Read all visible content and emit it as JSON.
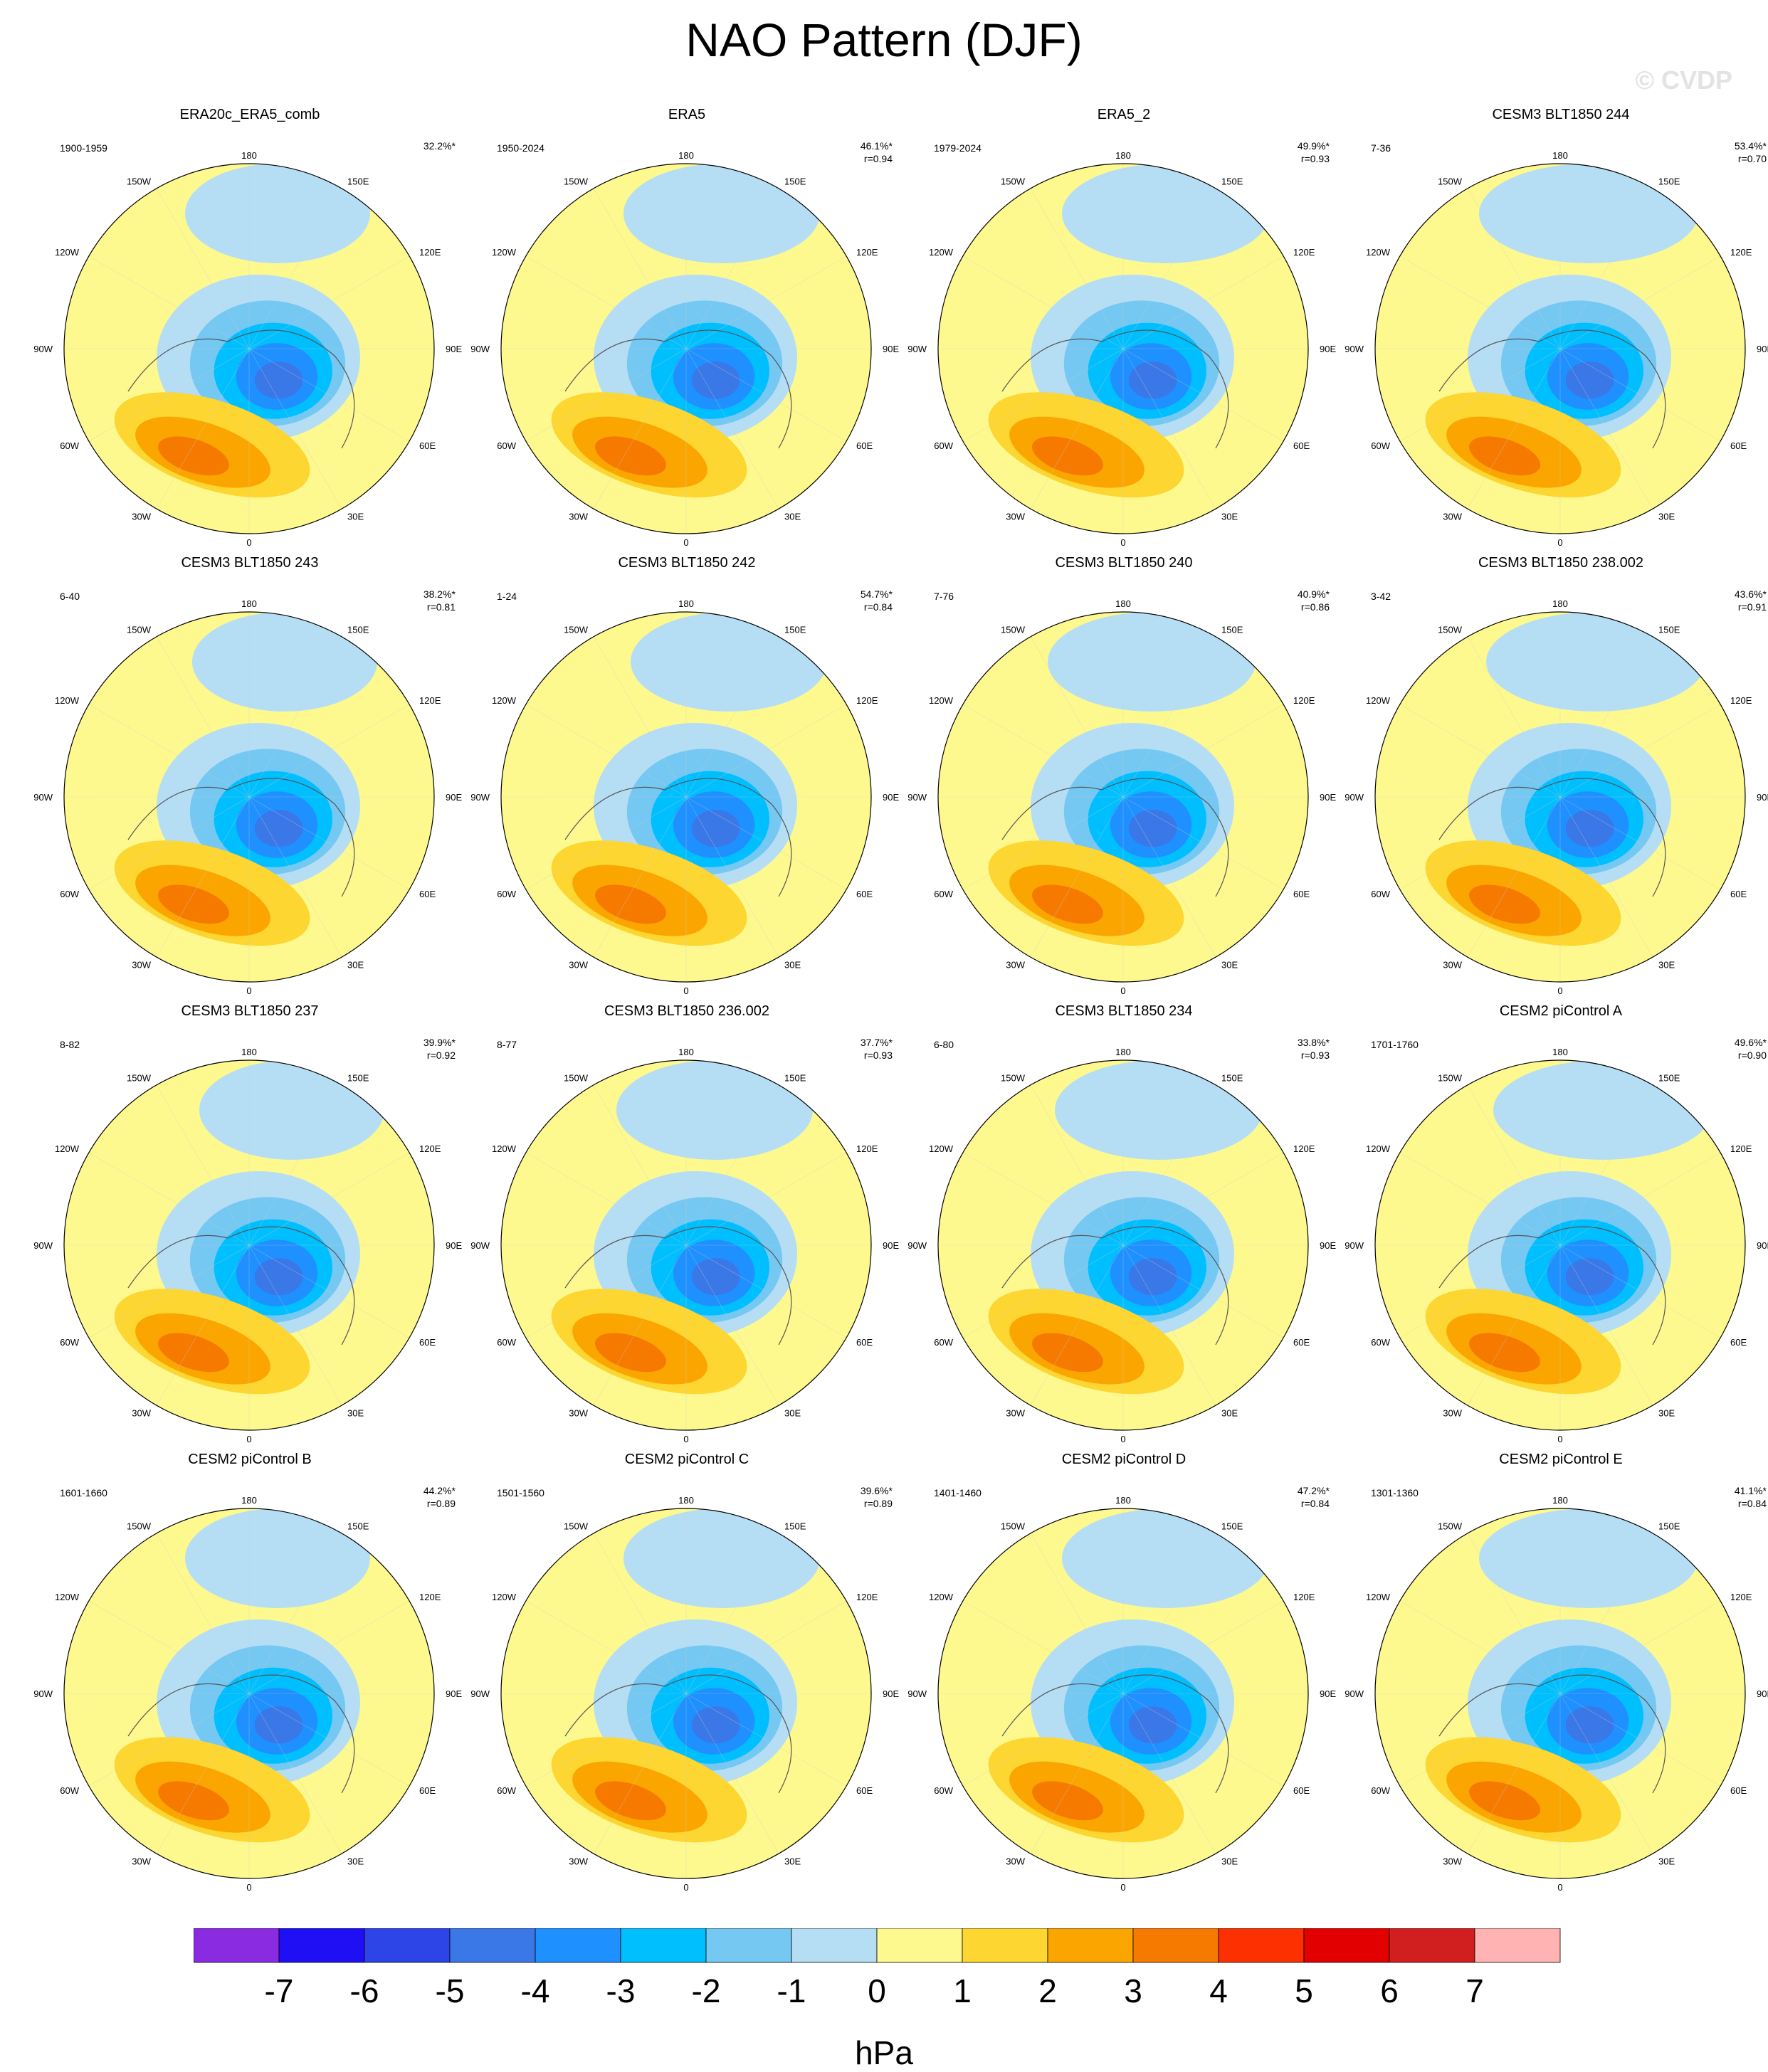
{
  "title": "NAO Pattern (DJF)",
  "watermark": "© CVDP",
  "longitude_labels": [
    "180",
    "150E",
    "120E",
    "90E",
    "60E",
    "30E",
    "0",
    "30W",
    "60W",
    "90W",
    "120W",
    "150W"
  ],
  "colors": {
    "levels": [
      "#8a2be2",
      "#1e0ff5",
      "#2d44e6",
      "#3a78e8",
      "#1e90ff",
      "#00bfff",
      "#75c8f2",
      "#b5def5",
      "#fef98e",
      "#fdd632",
      "#fba600",
      "#f77a00",
      "#fc3000",
      "#e30000",
      "#d11e1e",
      "#ffb3b3"
    ],
    "coast": "#555555",
    "grid": "#cccccc"
  },
  "panels": [
    {
      "title": "ERA20c_ERA5_comb",
      "years": "1900-1959",
      "pct": "32.2%*",
      "r": ""
    },
    {
      "title": "ERA5",
      "years": "1950-2024",
      "pct": "46.1%*",
      "r": "r=0.94"
    },
    {
      "title": "ERA5_2",
      "years": "1979-2024",
      "pct": "49.9%*",
      "r": "r=0.93"
    },
    {
      "title": "CESM3 BLT1850 244",
      "years": "7-36",
      "pct": "53.4%*",
      "r": "r=0.70"
    },
    {
      "title": "CESM3 BLT1850 243",
      "years": "6-40",
      "pct": "38.2%*",
      "r": "r=0.81"
    },
    {
      "title": "CESM3 BLT1850 242",
      "years": "1-24",
      "pct": "54.7%*",
      "r": "r=0.84"
    },
    {
      "title": "CESM3 BLT1850 240",
      "years": "7-76",
      "pct": "40.9%*",
      "r": "r=0.86"
    },
    {
      "title": "CESM3 BLT1850 238.002",
      "years": "3-42",
      "pct": "43.6%*",
      "r": "r=0.91"
    },
    {
      "title": "CESM3 BLT1850 237",
      "years": "8-82",
      "pct": "39.9%*",
      "r": "r=0.92"
    },
    {
      "title": "CESM3 BLT1850 236.002",
      "years": "8-77",
      "pct": "37.7%*",
      "r": "r=0.93"
    },
    {
      "title": "CESM3 BLT1850 234",
      "years": "6-80",
      "pct": "33.8%*",
      "r": "r=0.93"
    },
    {
      "title": "CESM2 piControl A",
      "years": "1701-1760",
      "pct": "49.6%*",
      "r": "r=0.90"
    },
    {
      "title": "CESM2 piControl B",
      "years": "1601-1660",
      "pct": "44.2%*",
      "r": "r=0.89"
    },
    {
      "title": "CESM2 piControl C",
      "years": "1501-1560",
      "pct": "39.6%*",
      "r": "r=0.89"
    },
    {
      "title": "CESM2 piControl D",
      "years": "1401-1460",
      "pct": "47.2%*",
      "r": "r=0.84"
    },
    {
      "title": "CESM2 piControl E",
      "years": "1301-1360",
      "pct": "41.1%*",
      "r": "r=0.84"
    }
  ],
  "colorbar": {
    "ticks": [
      "-7",
      "-6",
      "-5",
      "-4",
      "-3",
      "-2",
      "-1",
      "0",
      "1",
      "2",
      "3",
      "4",
      "5",
      "6",
      "7"
    ],
    "unit": "hPa"
  }
}
